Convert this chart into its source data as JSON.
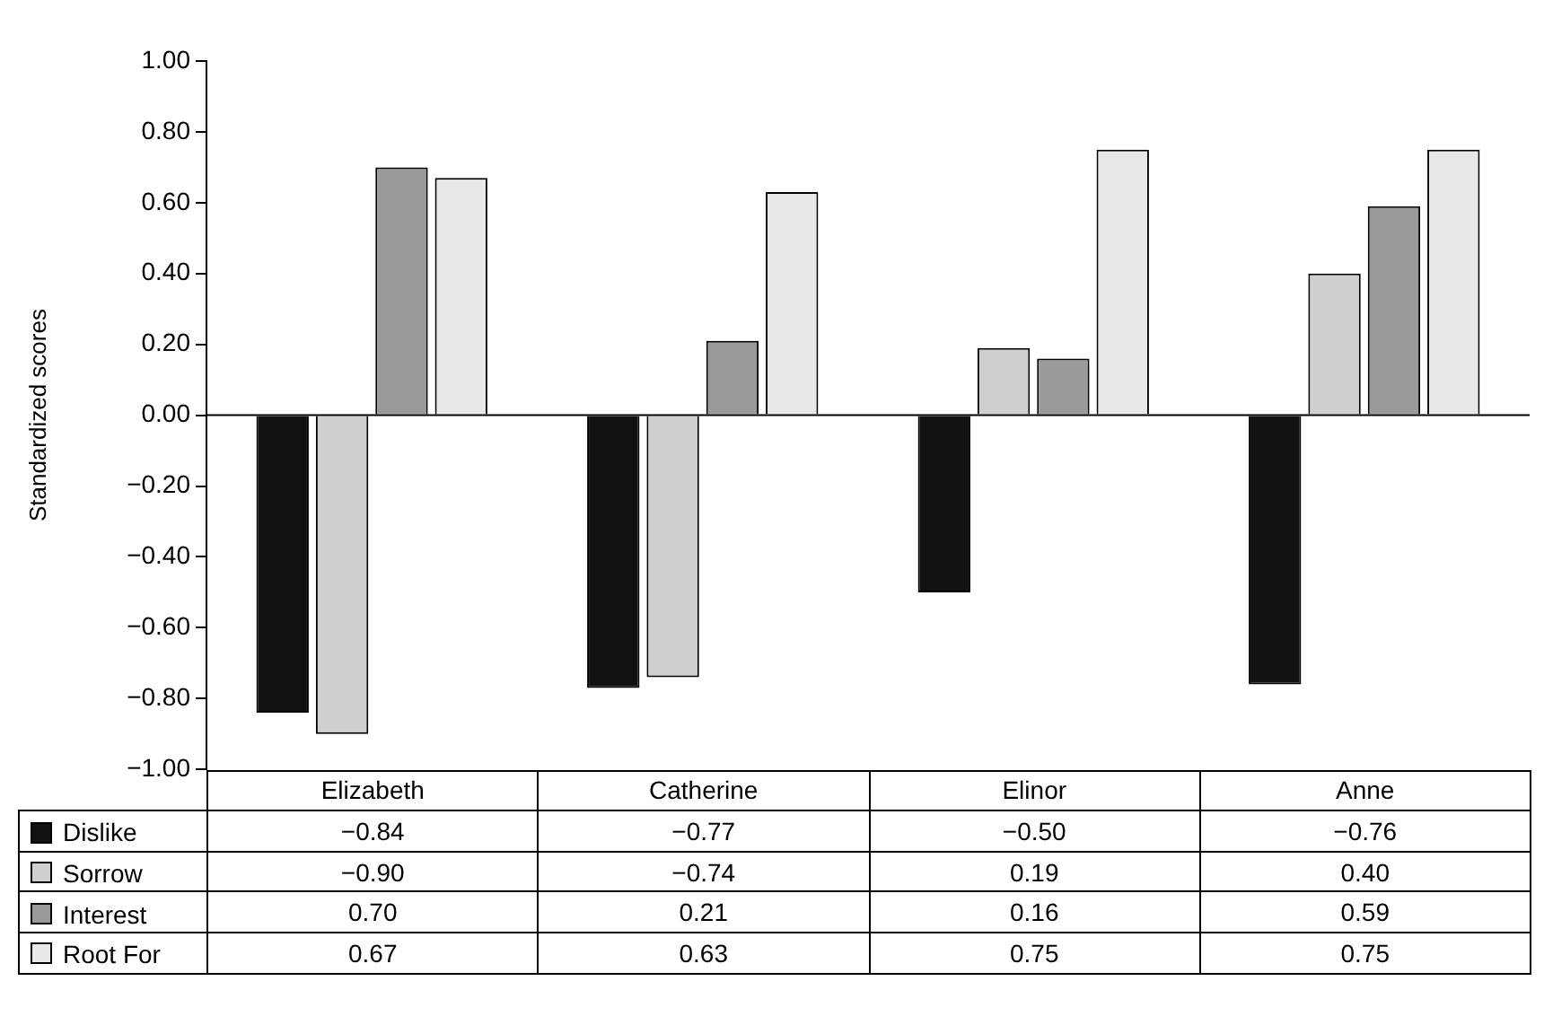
{
  "chart_data": {
    "type": "bar",
    "ylabel": "Standardized scores",
    "categories": [
      "Elizabeth",
      "Catherine",
      "Elinor",
      "Anne"
    ],
    "series": [
      {
        "name": "Dislike",
        "color": "#111111",
        "values": [
          -0.84,
          -0.77,
          -0.5,
          -0.76
        ],
        "value_labels": [
          "−0.84",
          "−0.77",
          "−0.50",
          "−0.76"
        ]
      },
      {
        "name": "Sorrow",
        "color": "#cfcfcf",
        "values": [
          -0.9,
          -0.74,
          0.19,
          0.4
        ],
        "value_labels": [
          "−0.90",
          "−0.74",
          "0.19",
          "0.40"
        ]
      },
      {
        "name": "Interest",
        "color": "#9a9a9a",
        "values": [
          0.7,
          0.21,
          0.16,
          0.59
        ],
        "value_labels": [
          "0.70",
          "0.21",
          "0.16",
          "0.59"
        ]
      },
      {
        "name": "Root For",
        "color": "#e8e8e8",
        "values": [
          0.67,
          0.63,
          0.75,
          0.75
        ],
        "value_labels": [
          "0.67",
          "0.63",
          "0.75",
          "0.75"
        ]
      }
    ],
    "ylim": [
      -1,
      1
    ],
    "yticks": [
      {
        "value": -1,
        "label": "−1.00"
      },
      {
        "value": -0.8,
        "label": "−0.80"
      },
      {
        "value": -0.6,
        "label": "−0.60"
      },
      {
        "value": -0.4,
        "label": "−0.40"
      },
      {
        "value": -0.2,
        "label": "−0.20"
      },
      {
        "value": 0,
        "label": "0.00"
      },
      {
        "value": 0.2,
        "label": "0.20"
      },
      {
        "value": 0.4,
        "label": "0.40"
      },
      {
        "value": 0.6,
        "label": "0.60"
      },
      {
        "value": 0.8,
        "label": "0.80"
      },
      {
        "value": 1,
        "label": "1.00"
      }
    ],
    "legend": "bottom"
  }
}
